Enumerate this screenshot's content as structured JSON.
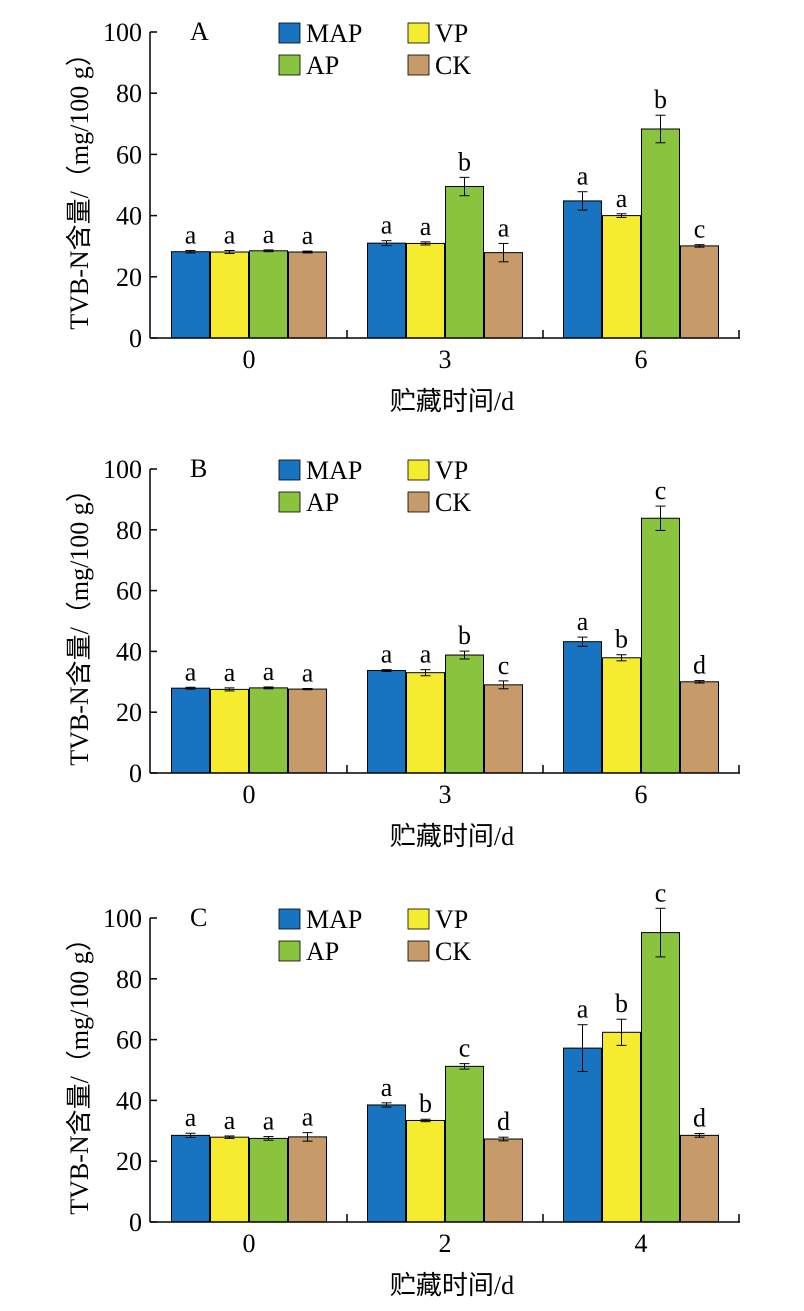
{
  "chart_data": [
    {
      "type": "bar",
      "panel_label": "A",
      "categories": [
        "0",
        "3",
        "6"
      ],
      "series": [
        {
          "name": "MAP",
          "values": [
            28.2,
            31.0,
            44.8
          ],
          "errors": [
            0.4,
            0.8,
            3.0
          ],
          "labels": [
            "a",
            "a",
            "a"
          ]
        },
        {
          "name": "VP",
          "values": [
            28.1,
            30.9,
            40.0
          ],
          "errors": [
            0.5,
            0.5,
            0.6
          ],
          "labels": [
            "a",
            "a",
            "a"
          ]
        },
        {
          "name": "AP",
          "values": [
            28.5,
            49.5,
            68.3
          ],
          "errors": [
            0.3,
            3.0,
            4.5
          ],
          "labels": [
            "a",
            "b",
            "b"
          ]
        },
        {
          "name": "CK",
          "values": [
            28.1,
            27.9,
            30.1
          ],
          "errors": [
            0.3,
            3.0,
            0.4
          ],
          "labels": [
            "a",
            "a",
            "c"
          ]
        }
      ],
      "xlabel": "贮藏时间/d",
      "ylabel": "TVB-N含量/（mg/100 g）",
      "ylim": [
        0,
        100
      ],
      "yticks": [
        0,
        20,
        40,
        60,
        80,
        100
      ],
      "legend_position": "top"
    },
    {
      "type": "bar",
      "panel_label": "B",
      "categories": [
        "0",
        "3",
        "6"
      ],
      "series": [
        {
          "name": "MAP",
          "values": [
            27.9,
            33.7,
            43.2
          ],
          "errors": [
            0.3,
            0.3,
            1.5
          ],
          "labels": [
            "a",
            "a",
            "a"
          ]
        },
        {
          "name": "VP",
          "values": [
            27.5,
            33.0,
            37.9
          ],
          "errors": [
            0.5,
            1.0,
            1.0
          ],
          "labels": [
            "a",
            "a",
            "b"
          ]
        },
        {
          "name": "AP",
          "values": [
            28.0,
            38.8,
            83.8
          ],
          "errors": [
            0.3,
            1.3,
            4.0
          ],
          "labels": [
            "a",
            "b",
            "c"
          ]
        },
        {
          "name": "CK",
          "values": [
            27.6,
            29.0,
            30.0
          ],
          "errors": [
            0.2,
            1.3,
            0.4
          ],
          "labels": [
            "a",
            "c",
            "d"
          ]
        }
      ],
      "xlabel": "贮藏时间/d",
      "ylabel": "TVB-N含量/（mg/100 g）",
      "ylim": [
        0,
        100
      ],
      "yticks": [
        0,
        20,
        40,
        60,
        80,
        100
      ],
      "legend_position": "top"
    },
    {
      "type": "bar",
      "panel_label": "C",
      "categories": [
        "0",
        "2",
        "4"
      ],
      "series": [
        {
          "name": "MAP",
          "values": [
            28.5,
            38.5,
            57.2
          ],
          "errors": [
            0.7,
            0.7,
            7.7
          ],
          "labels": [
            "a",
            "a",
            "a"
          ]
        },
        {
          "name": "VP",
          "values": [
            27.9,
            33.4,
            62.4
          ],
          "errors": [
            0.4,
            0.4,
            4.3
          ],
          "labels": [
            "a",
            "b",
            "b"
          ]
        },
        {
          "name": "AP",
          "values": [
            27.5,
            51.2,
            95.2
          ],
          "errors": [
            0.6,
            0.9,
            8.0
          ],
          "labels": [
            "a",
            "c",
            "c"
          ]
        },
        {
          "name": "CK",
          "values": [
            28.0,
            27.3,
            28.5
          ],
          "errors": [
            1.4,
            0.6,
            0.6
          ],
          "labels": [
            "a",
            "d",
            "d"
          ]
        }
      ],
      "xlabel": "贮藏时间/d",
      "ylabel": "TVB-N含量/（mg/100 g）",
      "ylim": [
        0,
        100
      ],
      "yticks": [
        0,
        20,
        40,
        60,
        80,
        100
      ],
      "legend_position": "top"
    }
  ],
  "colors": {
    "MAP": "#1874c1",
    "VP": "#f5ec30",
    "AP": "#8ac43f",
    "CK": "#c79a6a",
    "axis": "#000000"
  }
}
